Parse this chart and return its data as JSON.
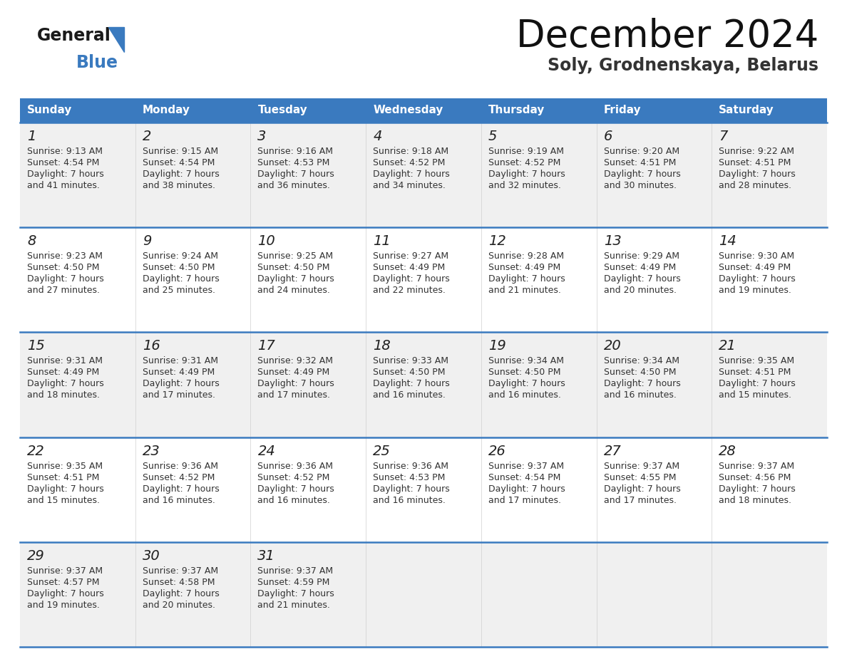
{
  "title": "December 2024",
  "subtitle": "Soly, Grodnenskaya, Belarus",
  "header_bg": "#3a7abf",
  "header_text": "#ffffff",
  "days_of_week": [
    "Sunday",
    "Monday",
    "Tuesday",
    "Wednesday",
    "Thursday",
    "Friday",
    "Saturday"
  ],
  "row_bg_odd": "#f0f0f0",
  "row_bg_even": "#ffffff",
  "separator_color": "#3a7abf",
  "text_color": "#333333",
  "calendar": [
    [
      {
        "day": 1,
        "sunrise": "9:13 AM",
        "sunset": "4:54 PM",
        "daylight_line1": "7 hours",
        "daylight_line2": "and 41 minutes."
      },
      {
        "day": 2,
        "sunrise": "9:15 AM",
        "sunset": "4:54 PM",
        "daylight_line1": "7 hours",
        "daylight_line2": "and 38 minutes."
      },
      {
        "day": 3,
        "sunrise": "9:16 AM",
        "sunset": "4:53 PM",
        "daylight_line1": "7 hours",
        "daylight_line2": "and 36 minutes."
      },
      {
        "day": 4,
        "sunrise": "9:18 AM",
        "sunset": "4:52 PM",
        "daylight_line1": "7 hours",
        "daylight_line2": "and 34 minutes."
      },
      {
        "day": 5,
        "sunrise": "9:19 AM",
        "sunset": "4:52 PM",
        "daylight_line1": "7 hours",
        "daylight_line2": "and 32 minutes."
      },
      {
        "day": 6,
        "sunrise": "9:20 AM",
        "sunset": "4:51 PM",
        "daylight_line1": "7 hours",
        "daylight_line2": "and 30 minutes."
      },
      {
        "day": 7,
        "sunrise": "9:22 AM",
        "sunset": "4:51 PM",
        "daylight_line1": "7 hours",
        "daylight_line2": "and 28 minutes."
      }
    ],
    [
      {
        "day": 8,
        "sunrise": "9:23 AM",
        "sunset": "4:50 PM",
        "daylight_line1": "7 hours",
        "daylight_line2": "and 27 minutes."
      },
      {
        "day": 9,
        "sunrise": "9:24 AM",
        "sunset": "4:50 PM",
        "daylight_line1": "7 hours",
        "daylight_line2": "and 25 minutes."
      },
      {
        "day": 10,
        "sunrise": "9:25 AM",
        "sunset": "4:50 PM",
        "daylight_line1": "7 hours",
        "daylight_line2": "and 24 minutes."
      },
      {
        "day": 11,
        "sunrise": "9:27 AM",
        "sunset": "4:49 PM",
        "daylight_line1": "7 hours",
        "daylight_line2": "and 22 minutes."
      },
      {
        "day": 12,
        "sunrise": "9:28 AM",
        "sunset": "4:49 PM",
        "daylight_line1": "7 hours",
        "daylight_line2": "and 21 minutes."
      },
      {
        "day": 13,
        "sunrise": "9:29 AM",
        "sunset": "4:49 PM",
        "daylight_line1": "7 hours",
        "daylight_line2": "and 20 minutes."
      },
      {
        "day": 14,
        "sunrise": "9:30 AM",
        "sunset": "4:49 PM",
        "daylight_line1": "7 hours",
        "daylight_line2": "and 19 minutes."
      }
    ],
    [
      {
        "day": 15,
        "sunrise": "9:31 AM",
        "sunset": "4:49 PM",
        "daylight_line1": "7 hours",
        "daylight_line2": "and 18 minutes."
      },
      {
        "day": 16,
        "sunrise": "9:31 AM",
        "sunset": "4:49 PM",
        "daylight_line1": "7 hours",
        "daylight_line2": "and 17 minutes."
      },
      {
        "day": 17,
        "sunrise": "9:32 AM",
        "sunset": "4:49 PM",
        "daylight_line1": "7 hours",
        "daylight_line2": "and 17 minutes."
      },
      {
        "day": 18,
        "sunrise": "9:33 AM",
        "sunset": "4:50 PM",
        "daylight_line1": "7 hours",
        "daylight_line2": "and 16 minutes."
      },
      {
        "day": 19,
        "sunrise": "9:34 AM",
        "sunset": "4:50 PM",
        "daylight_line1": "7 hours",
        "daylight_line2": "and 16 minutes."
      },
      {
        "day": 20,
        "sunrise": "9:34 AM",
        "sunset": "4:50 PM",
        "daylight_line1": "7 hours",
        "daylight_line2": "and 16 minutes."
      },
      {
        "day": 21,
        "sunrise": "9:35 AM",
        "sunset": "4:51 PM",
        "daylight_line1": "7 hours",
        "daylight_line2": "and 15 minutes."
      }
    ],
    [
      {
        "day": 22,
        "sunrise": "9:35 AM",
        "sunset": "4:51 PM",
        "daylight_line1": "7 hours",
        "daylight_line2": "and 15 minutes."
      },
      {
        "day": 23,
        "sunrise": "9:36 AM",
        "sunset": "4:52 PM",
        "daylight_line1": "7 hours",
        "daylight_line2": "and 16 minutes."
      },
      {
        "day": 24,
        "sunrise": "9:36 AM",
        "sunset": "4:52 PM",
        "daylight_line1": "7 hours",
        "daylight_line2": "and 16 minutes."
      },
      {
        "day": 25,
        "sunrise": "9:36 AM",
        "sunset": "4:53 PM",
        "daylight_line1": "7 hours",
        "daylight_line2": "and 16 minutes."
      },
      {
        "day": 26,
        "sunrise": "9:37 AM",
        "sunset": "4:54 PM",
        "daylight_line1": "7 hours",
        "daylight_line2": "and 17 minutes."
      },
      {
        "day": 27,
        "sunrise": "9:37 AM",
        "sunset": "4:55 PM",
        "daylight_line1": "7 hours",
        "daylight_line2": "and 17 minutes."
      },
      {
        "day": 28,
        "sunrise": "9:37 AM",
        "sunset": "4:56 PM",
        "daylight_line1": "7 hours",
        "daylight_line2": "and 18 minutes."
      }
    ],
    [
      {
        "day": 29,
        "sunrise": "9:37 AM",
        "sunset": "4:57 PM",
        "daylight_line1": "7 hours",
        "daylight_line2": "and 19 minutes."
      },
      {
        "day": 30,
        "sunrise": "9:37 AM",
        "sunset": "4:58 PM",
        "daylight_line1": "7 hours",
        "daylight_line2": "and 20 minutes."
      },
      {
        "day": 31,
        "sunrise": "9:37 AM",
        "sunset": "4:59 PM",
        "daylight_line1": "7 hours",
        "daylight_line2": "and 21 minutes."
      },
      null,
      null,
      null,
      null
    ]
  ]
}
